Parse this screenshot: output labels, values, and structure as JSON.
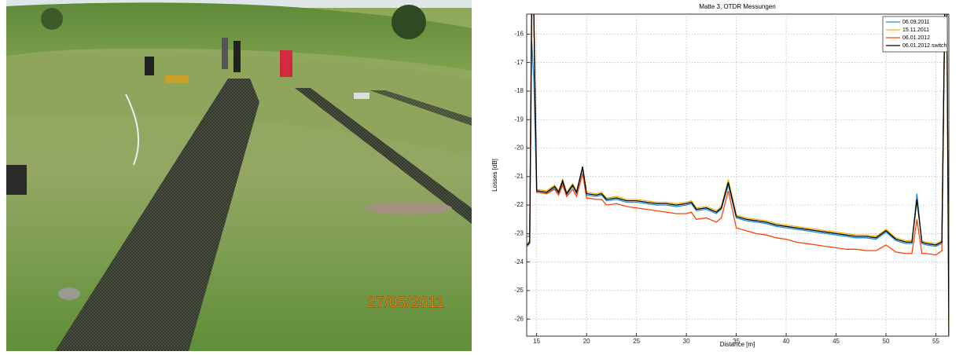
{
  "photo": {
    "date_stamp": "27/05/2011"
  },
  "chart_data": {
    "type": "line",
    "title": "Matte 3, OTDR Messungen",
    "x_label": "Distance [m]",
    "y_label": "Losses [dB]",
    "xlim": [
      14,
      56.3
    ],
    "xticks": [
      15,
      20,
      25,
      30,
      35,
      40,
      45,
      50,
      55
    ],
    "ylim": [
      -26.6,
      -15.3
    ],
    "yticks": [
      -26,
      -25,
      -24,
      -23,
      -22,
      -21,
      -20,
      -19,
      -18,
      -17,
      -16
    ],
    "grid": true,
    "legend": "top-right",
    "x": [
      14.05,
      14.3,
      14.5,
      14.7,
      15.0,
      16,
      16.8,
      17.2,
      17.6,
      18.0,
      18.6,
      19.0,
      19.6,
      20.0,
      21,
      21.5,
      22,
      23,
      24,
      25,
      26,
      27,
      28,
      29,
      30,
      30.5,
      31,
      32,
      33,
      33.5,
      34.2,
      35,
      36,
      37,
      38,
      39,
      40,
      41,
      42,
      43,
      44,
      45,
      46,
      47,
      48,
      49,
      50,
      51,
      52,
      52.6,
      53.1,
      53.6,
      54,
      55,
      55.6,
      55.9,
      56.1,
      56.3
    ],
    "series": [
      {
        "name": "06.09.2011",
        "color": "#1f8fe0",
        "values": [
          -23.45,
          -23.35,
          -16.2,
          -17.5,
          -21.55,
          -21.6,
          -21.4,
          -21.6,
          -21.2,
          -21.65,
          -21.35,
          -21.6,
          -20.75,
          -21.65,
          -21.7,
          -21.65,
          -21.85,
          -21.8,
          -21.9,
          -21.9,
          -21.95,
          -22.0,
          -22.0,
          -22.05,
          -22.0,
          -21.95,
          -22.2,
          -22.15,
          -22.3,
          -22.15,
          -21.3,
          -22.45,
          -22.55,
          -22.6,
          -22.65,
          -22.75,
          -22.8,
          -22.85,
          -22.9,
          -22.95,
          -23.0,
          -23.05,
          -23.1,
          -23.15,
          -23.15,
          -23.2,
          -22.95,
          -23.25,
          -23.35,
          -23.35,
          -21.6,
          -23.35,
          -23.4,
          -23.45,
          -23.35,
          -15,
          -15,
          -15
        ]
      },
      {
        "name": "15.11.2011",
        "color": "#f0b400",
        "values": [
          -23.35,
          -23.25,
          -15,
          -15,
          -21.45,
          -21.5,
          -21.3,
          -21.5,
          -21.1,
          -21.55,
          -21.25,
          -21.5,
          -20.7,
          -21.55,
          -21.6,
          -21.55,
          -21.75,
          -21.7,
          -21.8,
          -21.8,
          -21.85,
          -21.9,
          -21.9,
          -21.95,
          -21.9,
          -21.85,
          -22.1,
          -22.05,
          -22.2,
          -22.05,
          -21.1,
          -22.35,
          -22.45,
          -22.5,
          -22.55,
          -22.65,
          -22.7,
          -22.75,
          -22.8,
          -22.85,
          -22.9,
          -22.95,
          -23.0,
          -23.05,
          -23.05,
          -23.1,
          -22.85,
          -23.15,
          -23.25,
          -23.25,
          -21.9,
          -23.25,
          -23.3,
          -23.35,
          -23.25,
          -15,
          -15,
          -26.6
        ]
      },
      {
        "name": "06.01.2012",
        "color": "#ff4000",
        "values": [
          -23.1,
          -23.1,
          -15,
          -15,
          -21.55,
          -21.6,
          -21.45,
          -21.65,
          -21.3,
          -21.7,
          -21.45,
          -21.7,
          -20.9,
          -21.75,
          -21.8,
          -21.8,
          -22.0,
          -21.95,
          -22.05,
          -22.1,
          -22.15,
          -22.2,
          -22.25,
          -22.3,
          -22.3,
          -22.25,
          -22.5,
          -22.45,
          -22.6,
          -22.45,
          -21.5,
          -22.8,
          -22.9,
          -23.0,
          -23.05,
          -23.15,
          -23.2,
          -23.3,
          -23.35,
          -23.4,
          -23.45,
          -23.5,
          -23.55,
          -23.55,
          -23.6,
          -23.6,
          -23.4,
          -23.65,
          -23.7,
          -23.7,
          -22.5,
          -23.7,
          -23.7,
          -23.75,
          -23.6,
          -15,
          -15,
          -15
        ]
      },
      {
        "name": "06.01.2012 switch",
        "color": "#000000",
        "values": [
          -23.4,
          -23.3,
          -15,
          -15,
          -21.5,
          -21.55,
          -21.35,
          -21.55,
          -21.15,
          -21.6,
          -21.3,
          -21.55,
          -20.65,
          -21.6,
          -21.65,
          -21.6,
          -21.8,
          -21.75,
          -21.85,
          -21.85,
          -21.9,
          -21.95,
          -21.95,
          -22.0,
          -21.95,
          -21.9,
          -22.15,
          -22.1,
          -22.25,
          -22.1,
          -21.2,
          -22.4,
          -22.5,
          -22.55,
          -22.6,
          -22.7,
          -22.75,
          -22.8,
          -22.85,
          -22.9,
          -22.95,
          -23.0,
          -23.05,
          -23.1,
          -23.1,
          -23.15,
          -22.9,
          -23.2,
          -23.3,
          -23.3,
          -21.8,
          -23.3,
          -23.35,
          -23.4,
          -23.3,
          -15,
          -15,
          -26.6
        ]
      }
    ]
  }
}
